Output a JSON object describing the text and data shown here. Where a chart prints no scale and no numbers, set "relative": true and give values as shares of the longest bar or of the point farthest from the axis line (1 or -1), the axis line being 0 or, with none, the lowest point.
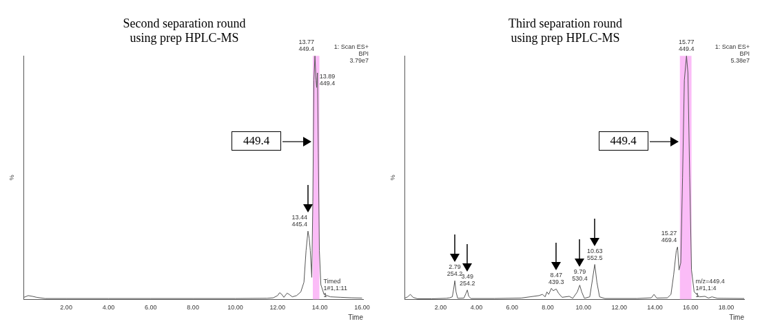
{
  "chart_data": [
    {
      "type": "line",
      "title": "Second separation round\nusing prep HPLC-MS",
      "xlabel": "Time",
      "ylabel": "%",
      "relative": true,
      "marker": "none",
      "grid": false,
      "xlim": [
        0,
        16.05
      ],
      "xticks": [
        {
          "value": 2,
          "label": "2.00"
        },
        {
          "value": 4,
          "label": "4.00"
        },
        {
          "value": 6,
          "label": "6.00"
        },
        {
          "value": 8,
          "label": "8.00"
        },
        {
          "value": 10,
          "label": "10.00"
        },
        {
          "value": 12,
          "label": "12.00"
        },
        {
          "value": 14,
          "label": "14.00"
        },
        {
          "value": 16,
          "label": "16.00"
        }
      ],
      "series": [
        {
          "color": "#555555",
          "x": [
            0,
            0.2,
            0.4,
            0.6,
            1,
            2,
            4,
            6,
            8,
            10,
            11.5,
            11.8,
            12,
            12.1,
            12.2,
            12.3,
            12.45,
            12.55,
            12.7,
            12.9,
            13.1,
            13.25,
            13.35,
            13.44,
            13.5,
            13.55,
            13.62,
            13.67,
            13.72,
            13.77,
            13.82,
            13.85,
            13.89,
            13.93,
            13.98,
            14.05,
            14.2,
            14.5,
            15,
            15.5,
            16
          ],
          "values": [
            0.008,
            0.015,
            0.012,
            0.008,
            0.003,
            0.003,
            0.003,
            0.003,
            0.003,
            0.003,
            0.004,
            0.006,
            0.015,
            0.027,
            0.02,
            0.008,
            0.025,
            0.02,
            0.01,
            0.015,
            0.03,
            0.07,
            0.2,
            0.28,
            0.25,
            0.2,
            0.09,
            0.4,
            0.9,
            1,
            0.9,
            0.87,
            0.93,
            0.6,
            0.2,
            0.06,
            0.02,
            0.01,
            0.008,
            0.006,
            0.005
          ]
        }
      ],
      "bands": [
        {
          "axis": "x",
          "from": 13.67,
          "to": 13.98,
          "color": "#fbbcf7"
        }
      ],
      "annotations": [
        "1: Scan ES+\nBPI\n3.79e7",
        "449.4",
        "Timed\n1#1,1:11\n1",
        {
          "text": "13.77\n449.4",
          "x": 13.77,
          "y": 1
        },
        {
          "text": "13.89\n449.4",
          "x": 13.89,
          "y": 0.93
        },
        {
          "text": "13.44\n445.4",
          "x": 13.44,
          "y": 0.28
        }
      ]
    },
    {
      "type": "line",
      "title": "Third separation round\nusing prep HPLC-MS",
      "xlabel": "Time",
      "ylabel": "%",
      "relative": true,
      "marker": "none",
      "grid": false,
      "xlim": [
        0,
        19
      ],
      "xticks": [
        {
          "value": 2,
          "label": "2.00"
        },
        {
          "value": 4,
          "label": "4.00"
        },
        {
          "value": 6,
          "label": "6.00"
        },
        {
          "value": 8,
          "label": "8.00"
        },
        {
          "value": 10,
          "label": "10.00"
        },
        {
          "value": 12,
          "label": "12.00"
        },
        {
          "value": 14,
          "label": "14.00"
        },
        {
          "value": 16,
          "label": "16.00"
        },
        {
          "value": 18,
          "label": "18.00"
        }
      ],
      "series": [
        {
          "color": "#555555",
          "x": [
            0,
            0.15,
            0.3,
            0.45,
            0.7,
            1.5,
            2.3,
            2.5,
            2.65,
            2.72,
            2.79,
            2.86,
            2.95,
            3.3,
            3.42,
            3.49,
            3.57,
            3.7,
            5,
            6.5,
            7,
            7.5,
            7.7,
            7.85,
            7.95,
            8.05,
            8.2,
            8.3,
            8.47,
            8.6,
            8.8,
            9.2,
            9.4,
            9.65,
            9.79,
            9.9,
            10.05,
            10.35,
            10.5,
            10.63,
            10.75,
            10.9,
            11.2,
            13,
            13.8,
            13.95,
            14.1,
            14.7,
            14.9,
            15.05,
            15.2,
            15.27,
            15.35,
            15.45,
            15.55,
            15.65,
            15.77,
            15.85,
            15.95,
            16.05,
            16.2,
            16.5,
            16.8,
            17,
            17.2,
            17.5,
            19
          ],
          "values": [
            0.005,
            0.01,
            0.02,
            0.008,
            0.002,
            0.002,
            0.004,
            0.006,
            0.01,
            0.04,
            0.076,
            0.03,
            0.004,
            0.005,
            0.025,
            0.038,
            0.012,
            0.003,
            0.003,
            0.005,
            0.01,
            0.015,
            0.02,
            0.01,
            0.03,
            0.02,
            0.045,
            0.035,
            0.042,
            0.025,
            0.008,
            0.012,
            0.004,
            0.03,
            0.058,
            0.03,
            0.004,
            0.01,
            0.08,
            0.143,
            0.07,
            0.01,
            0.003,
            0.003,
            0.006,
            0.02,
            0.005,
            0.006,
            0.02,
            0.1,
            0.2,
            0.215,
            0.12,
            0.15,
            0.5,
            0.9,
            1,
            0.93,
            0.5,
            0.12,
            0.03,
            0.01,
            0.012,
            0.005,
            0.01,
            0.004,
            0.003
          ]
        }
      ],
      "bands": [
        {
          "axis": "x",
          "from": 15.4,
          "to": 16.05,
          "color": "#fbbcf7"
        }
      ],
      "annotations": [
        "1: Scan ES+\nBPI\n5.38e7",
        "449.4",
        "m/z=449.4\n1#1,1:4\n1",
        {
          "text": "2.79\n254.2",
          "x": 2.79,
          "y": 0.076
        },
        {
          "text": "3.49\n254.2",
          "x": 3.49,
          "y": 0.038
        },
        {
          "text": "8.47\n439.3",
          "x": 8.47,
          "y": 0.042
        },
        {
          "text": "9.79\n530.4",
          "x": 9.79,
          "y": 0.058
        },
        {
          "text": "10.63\n552.5",
          "x": 10.63,
          "y": 0.143
        },
        {
          "text": "15.27\n469.4",
          "x": 15.27,
          "y": 0.215
        },
        {
          "text": "15.77\n449.4",
          "x": 15.77,
          "y": 1
        }
      ]
    }
  ]
}
